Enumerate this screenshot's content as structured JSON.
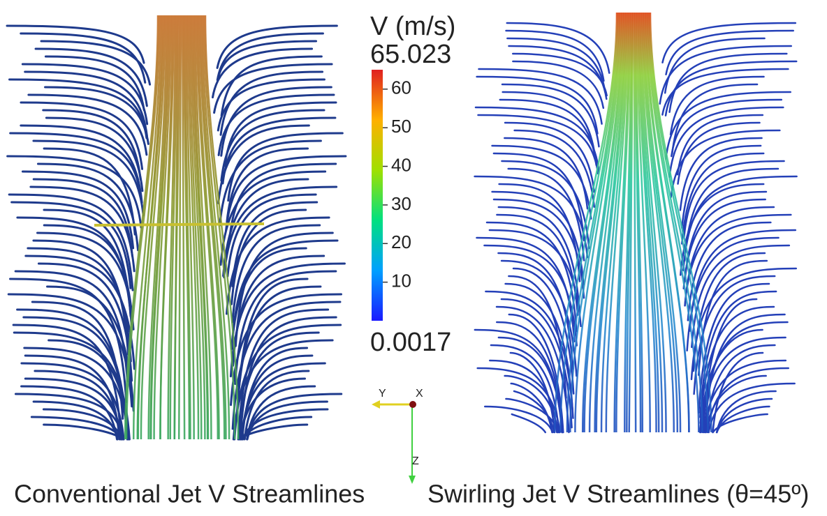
{
  "colorbar": {
    "title": "V (m/s)",
    "max": 65.023,
    "min": 0.0017,
    "ticks": [
      10,
      20,
      30,
      40,
      50,
      60
    ]
  },
  "axes": {
    "y": "Y",
    "x": "X",
    "z": "Z"
  },
  "captions": [
    "Conventional Jet V Streamlines",
    "Swirling Jet V Streamlines (θ=45º)"
  ]
}
